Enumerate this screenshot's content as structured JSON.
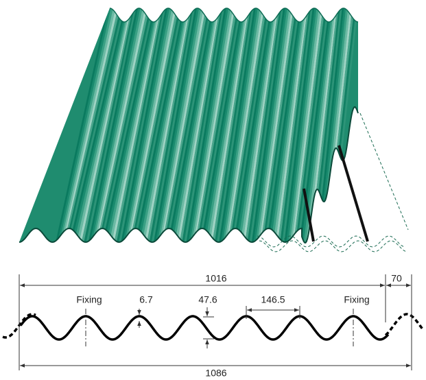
{
  "profile": {
    "cover_width": "1016",
    "side_lap": "70",
    "fixing_left": "Fixing",
    "thickness": "6.7",
    "depth": "47.6",
    "pitch": "146.5",
    "fixing_right": "Fixing",
    "overall_width": "1086"
  }
}
